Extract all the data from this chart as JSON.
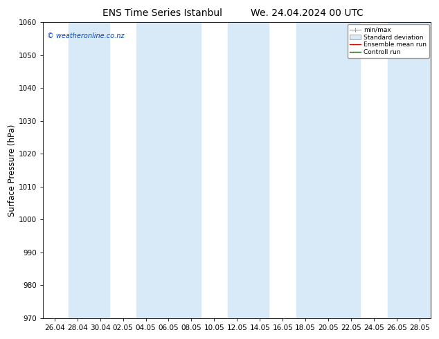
{
  "title_left": "ENS Time Series Istanbul",
  "title_right": "We. 24.04.2024 00 UTC",
  "ylabel": "Surface Pressure (hPa)",
  "ylim": [
    970,
    1060
  ],
  "yticks": [
    970,
    980,
    990,
    1000,
    1010,
    1020,
    1030,
    1040,
    1050,
    1060
  ],
  "xtick_labels": [
    "26.04",
    "28.04",
    "30.04",
    "02.05",
    "04.05",
    "06.05",
    "08.05",
    "10.05",
    "12.05",
    "14.05",
    "16.05",
    "18.05",
    "20.05",
    "22.05",
    "24.05",
    "26.05",
    "28.05"
  ],
  "watermark": "© weatheronline.co.nz",
  "watermark_color": "#0044cc",
  "background_color": "#ffffff",
  "plot_bg_color": "#ffffff",
  "band_color": "#d8eaf8",
  "legend_labels": [
    "min/max",
    "Standard deviation",
    "Ensemble mean run",
    "Controll run"
  ],
  "legend_colors": [
    "#aaaaaa",
    "#c8dff0",
    "#cc0000",
    "#007700"
  ],
  "title_fontsize": 10,
  "tick_fontsize": 7.5,
  "ylabel_fontsize": 8.5
}
